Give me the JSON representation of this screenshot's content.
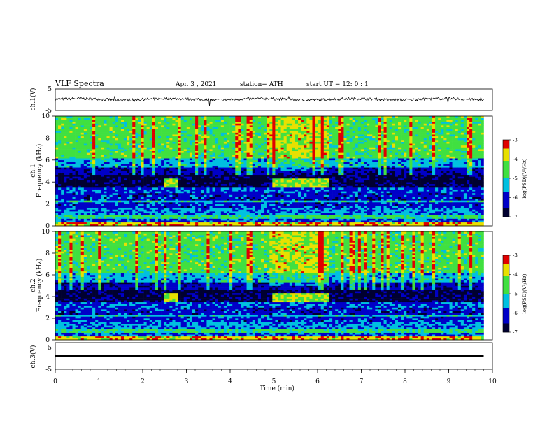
{
  "header": {
    "title": "VLF  Spectra",
    "date": "Apr. 3  , 2021",
    "station": "station= ATH",
    "start": "start  UT  =    12: 0   : 1"
  },
  "chart_data": [
    {
      "type": "line",
      "name": "ch1-timeseries",
      "ylabel": "ch.1(V)",
      "xlim": [
        0,
        10
      ],
      "ylim": [
        -5,
        5
      ],
      "yticks": [
        "5",
        "-5"
      ],
      "trace_mean": 0.2,
      "trace_noise": 0.6
    },
    {
      "type": "heatmap",
      "name": "ch1-spectrogram",
      "ylabel": "ch.1\nFrequency (kHz)",
      "xlim": [
        0,
        9.8
      ],
      "ylim": [
        0,
        10
      ],
      "yticks": [
        "0",
        "2",
        "4",
        "6",
        "8",
        "10"
      ],
      "colorbar": {
        "label": "log(PSD)(V²/Hz)",
        "range": [
          -7,
          -3
        ],
        "ticks": [
          "-3",
          "-4",
          "-5",
          "-6",
          "-7"
        ]
      },
      "bursts": [
        {
          "t_start": 2.5,
          "t_end": 2.8,
          "f_low": 3.5,
          "f_high": 4.3
        },
        {
          "t_start": 4.95,
          "t_end": 6.25,
          "f_low": 3.5,
          "f_high": 4.3
        }
      ]
    },
    {
      "type": "heatmap",
      "name": "ch2-spectrogram",
      "ylabel": "ch.2\nFrequency (kHz)",
      "xlim": [
        0,
        9.8
      ],
      "ylim": [
        0,
        10
      ],
      "yticks": [
        "0",
        "2",
        "4",
        "6",
        "8",
        "10"
      ],
      "colorbar": {
        "label": "log(PSD)(V²/Hz)",
        "range": [
          -7,
          -3
        ],
        "ticks": [
          "-3",
          "-4",
          "-5",
          "-6",
          "-7"
        ]
      },
      "bursts": [
        {
          "t_start": 2.5,
          "t_end": 2.8,
          "f_low": 3.5,
          "f_high": 4.3
        },
        {
          "t_start": 4.95,
          "t_end": 6.25,
          "f_low": 3.5,
          "f_high": 4.3
        }
      ]
    },
    {
      "type": "line",
      "name": "ch3-timeseries",
      "ylabel": "ch.3(V)",
      "xlim": [
        0,
        10
      ],
      "ylim": [
        -5,
        5
      ],
      "yticks": [
        "5",
        "-5"
      ],
      "trace_mean": 0,
      "trace_noise": 0.15
    }
  ],
  "xaxis": {
    "label": "Time  (min)",
    "ticks": [
      "0",
      "1",
      "2",
      "3",
      "4",
      "5",
      "6",
      "7",
      "8",
      "9",
      "10"
    ]
  },
  "colors": {
    "dark": "#000030",
    "blue": "#0000c8",
    "cyan": "#00c0e0",
    "green": "#40e040",
    "yellow": "#e8e000",
    "red": "#e00000",
    "white": "#ffffff"
  }
}
